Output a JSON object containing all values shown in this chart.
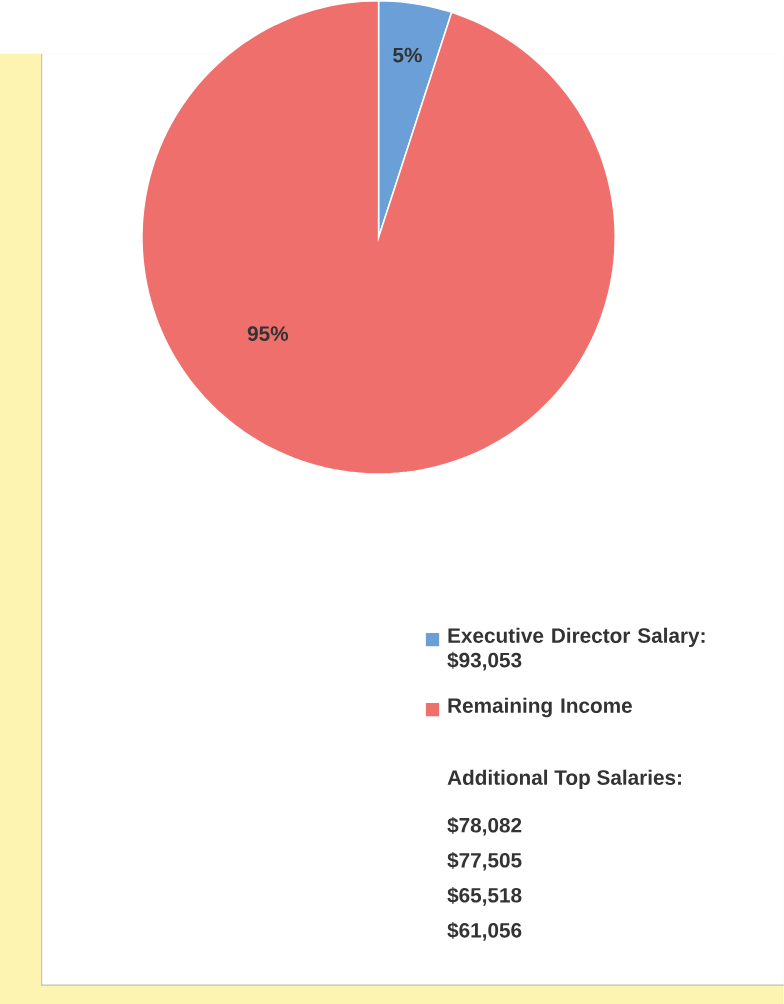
{
  "chart_data": {
    "type": "pie",
    "categories": [
      "Executive Director Salary: $93,053",
      "Remaining Income"
    ],
    "values": [
      5,
      95
    ],
    "colors": [
      "#6a9fd8",
      "#ef6f6c"
    ],
    "value_labels": [
      "5%",
      "95%"
    ],
    "legend": "bottom right",
    "annotations": [
      "Additional Top Salaries:",
      "$78,082",
      "$77,505",
      "$65,518",
      "$61,056"
    ]
  }
}
